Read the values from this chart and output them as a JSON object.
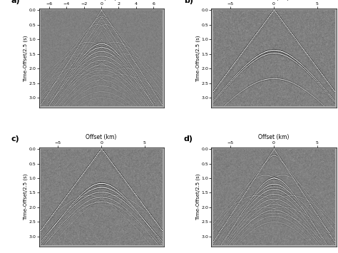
{
  "panels": [
    "a)",
    "b)",
    "c)",
    "d)"
  ],
  "xlabel": "Offset (km)",
  "ylabel": "Time-Offset/2.5 (s)",
  "bg_gray": 0.67,
  "fig_bg": "#ffffff",
  "axes_a": {
    "xlim": [
      -7.2,
      7.2
    ],
    "xticks": [
      -6,
      -4,
      -2,
      0,
      2,
      4,
      6
    ],
    "ylim": [
      3.35,
      -0.05
    ]
  },
  "axes_bcd": {
    "xlim": [
      -7.2,
      7.2
    ],
    "xticks": [
      -5,
      0,
      5
    ],
    "ylim": [
      3.35,
      -0.05
    ]
  },
  "yticks": [
    0,
    0.5,
    1.0,
    1.5,
    2.0,
    2.5,
    3.0
  ],
  "cmap": "gray"
}
